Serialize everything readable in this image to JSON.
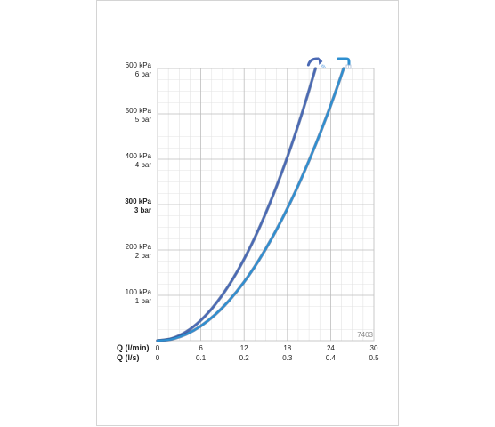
{
  "chart_data": {
    "type": "line",
    "title": "",
    "reference_number": "7403",
    "y_axis": {
      "range": [
        0,
        600
      ],
      "unit": "kPa",
      "ticks": [
        {
          "value": 100,
          "line1": "100 kPa",
          "line2": "1 bar",
          "bold": false
        },
        {
          "value": 200,
          "line1": "200 kPa",
          "line2": "2 bar",
          "bold": false
        },
        {
          "value": 300,
          "line1": "300 kPa",
          "line2": "3 bar",
          "bold": true
        },
        {
          "value": 400,
          "line1": "400 kPa",
          "line2": "4 bar",
          "bold": false
        },
        {
          "value": 500,
          "line1": "500 kPa",
          "line2": "5 bar",
          "bold": false
        },
        {
          "value": 600,
          "line1": "600 kPa",
          "line2": "6 bar",
          "bold": false
        }
      ]
    },
    "x_axis": {
      "range": [
        0,
        30
      ],
      "unit": "l/min",
      "label_lmin": "Q (l/min)",
      "label_ls": "Q (l/s)",
      "ticks": [
        {
          "value": 0,
          "lmin": "0",
          "ls": "0"
        },
        {
          "value": 6,
          "lmin": "6",
          "ls": "0.1"
        },
        {
          "value": 12,
          "lmin": "12",
          "ls": "0.2"
        },
        {
          "value": 18,
          "lmin": "18",
          "ls": "0.3"
        },
        {
          "value": 24,
          "lmin": "24",
          "ls": "0.4"
        },
        {
          "value": 30,
          "lmin": "30",
          "ls": "0.5"
        }
      ]
    },
    "grid": true,
    "series": [
      {
        "icon": "shower-head-icon",
        "color": "#4a69b4",
        "x": [
          0,
          2,
          4,
          6,
          8,
          10,
          12,
          14,
          16,
          18,
          20,
          21.9
        ],
        "y": [
          0,
          5,
          20,
          45,
          80,
          125,
          180,
          245,
          320,
          405,
          500,
          600
        ]
      },
      {
        "icon": "bath-spout-icon",
        "color": "#2e8fd0",
        "x": [
          0,
          2,
          4,
          6,
          8,
          10,
          12,
          14,
          16,
          18,
          20,
          22,
          24,
          25.8
        ],
        "y": [
          0,
          3.6,
          14.4,
          32.4,
          57.6,
          90,
          129.6,
          176.4,
          230.4,
          291.6,
          360,
          435.6,
          518.4,
          600
        ]
      }
    ]
  }
}
